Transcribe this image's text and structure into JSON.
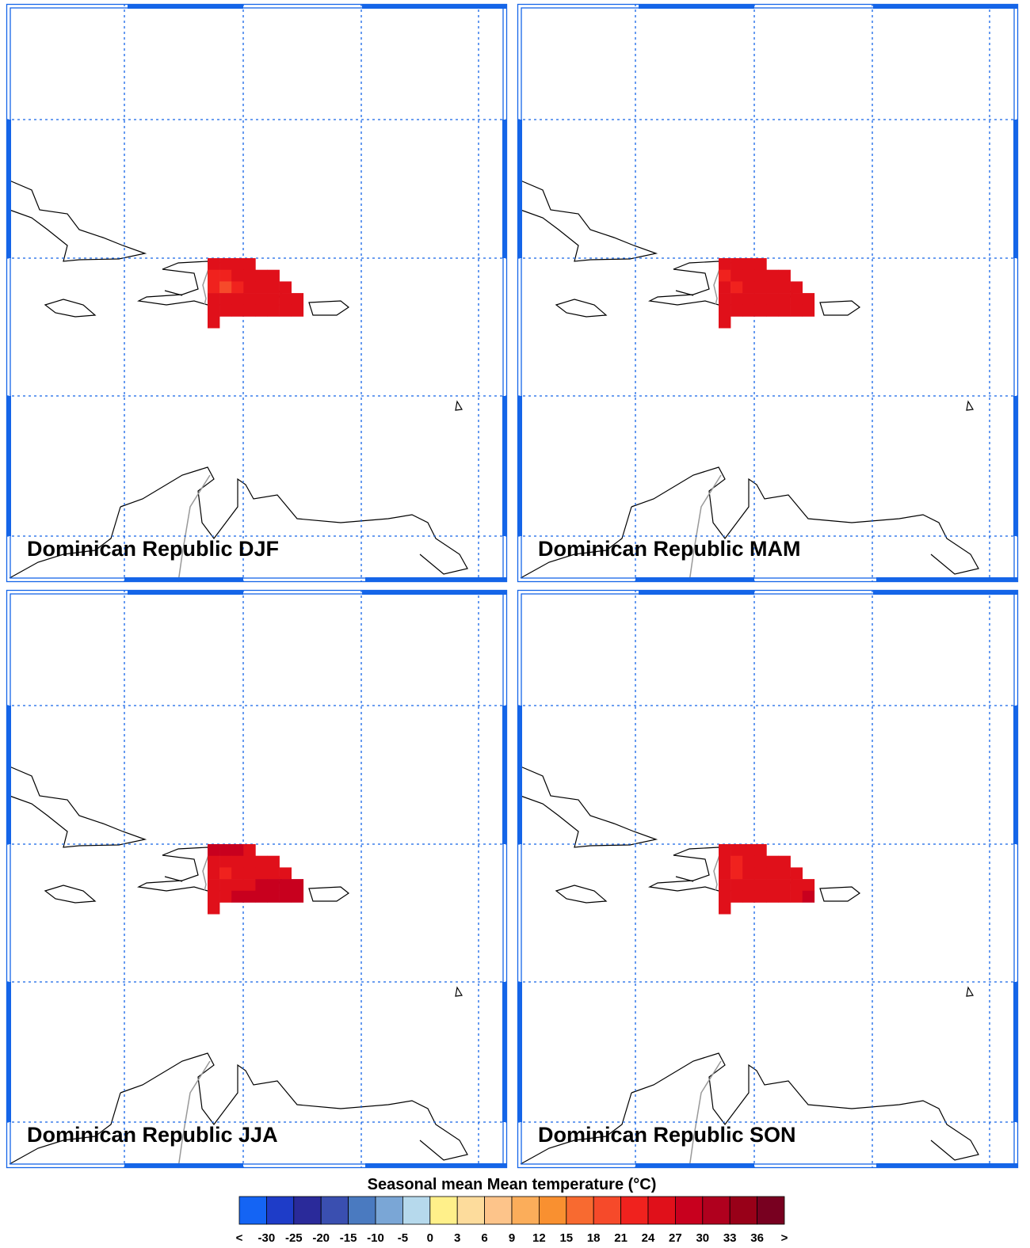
{
  "panels": [
    {
      "title": "Dominican Republic DJF",
      "cells": [
        [
          24,
          24,
          25,
          25,
          null,
          null,
          null,
          null
        ],
        [
          23,
          22,
          24,
          25,
          25,
          25,
          null,
          null
        ],
        [
          23,
          20,
          23,
          25,
          25,
          25,
          25,
          null
        ],
        [
          24,
          24,
          25,
          25,
          25,
          25,
          25,
          25
        ],
        [
          25,
          25,
          25,
          25,
          25,
          25,
          25,
          25
        ],
        [
          25,
          null,
          null,
          null,
          null,
          null,
          null,
          null
        ]
      ]
    },
    {
      "title": "Dominican Republic MAM",
      "cells": [
        [
          26,
          26,
          26,
          26,
          null,
          null,
          null,
          null
        ],
        [
          23,
          24,
          25,
          26,
          26,
          26,
          null,
          null
        ],
        [
          24,
          23,
          25,
          26,
          26,
          26,
          26,
          null
        ],
        [
          25,
          25,
          26,
          26,
          26,
          26,
          26,
          26
        ],
        [
          26,
          26,
          26,
          26,
          26,
          26,
          26,
          26
        ],
        [
          26,
          null,
          null,
          null,
          null,
          null,
          null,
          null
        ]
      ]
    },
    {
      "title": "Dominican Republic JJA",
      "cells": [
        [
          29,
          28,
          27,
          26,
          null,
          null,
          null,
          null
        ],
        [
          25,
          24,
          26,
          26,
          26,
          26,
          null,
          null
        ],
        [
          25,
          23,
          26,
          26,
          26,
          26,
          26,
          null
        ],
        [
          26,
          26,
          26,
          26,
          27,
          27,
          27,
          27
        ],
        [
          26,
          26,
          27,
          28,
          28,
          28,
          28,
          28
        ],
        [
          26,
          null,
          null,
          null,
          null,
          null,
          null,
          null
        ]
      ]
    },
    {
      "title": "Dominican Republic SON",
      "cells": [
        [
          26,
          26,
          26,
          26,
          null,
          null,
          null,
          null
        ],
        [
          24,
          23,
          25,
          26,
          26,
          26,
          null,
          null
        ],
        [
          24,
          23,
          24,
          26,
          26,
          26,
          26,
          null
        ],
        [
          25,
          25,
          26,
          26,
          26,
          26,
          26,
          26
        ],
        [
          26,
          26,
          26,
          26,
          26,
          26,
          26,
          27
        ],
        [
          26,
          null,
          null,
          null,
          null,
          null,
          null,
          null
        ]
      ]
    }
  ],
  "colorbar": {
    "title": "Seasonal mean Mean temperature (°C)",
    "under_label": "<",
    "over_label": ">",
    "levels": [
      -30,
      -25,
      -20,
      -15,
      -10,
      -5,
      0,
      3,
      6,
      9,
      12,
      15,
      18,
      21,
      24,
      27,
      30,
      33,
      36
    ],
    "colors": [
      "#1464f4",
      "#1e3cc8",
      "#2a2a9a",
      "#3a4fb0",
      "#4a7ac0",
      "#7aa6d6",
      "#b6d9ec",
      "#fff08a",
      "#fddc9c",
      "#fdc48a",
      "#fbad5a",
      "#f99030",
      "#f86a30",
      "#f64a2a",
      "#f0221e",
      "#e0101a",
      "#c8001e",
      "#b0001e",
      "#980018",
      "#780020"
    ]
  }
}
